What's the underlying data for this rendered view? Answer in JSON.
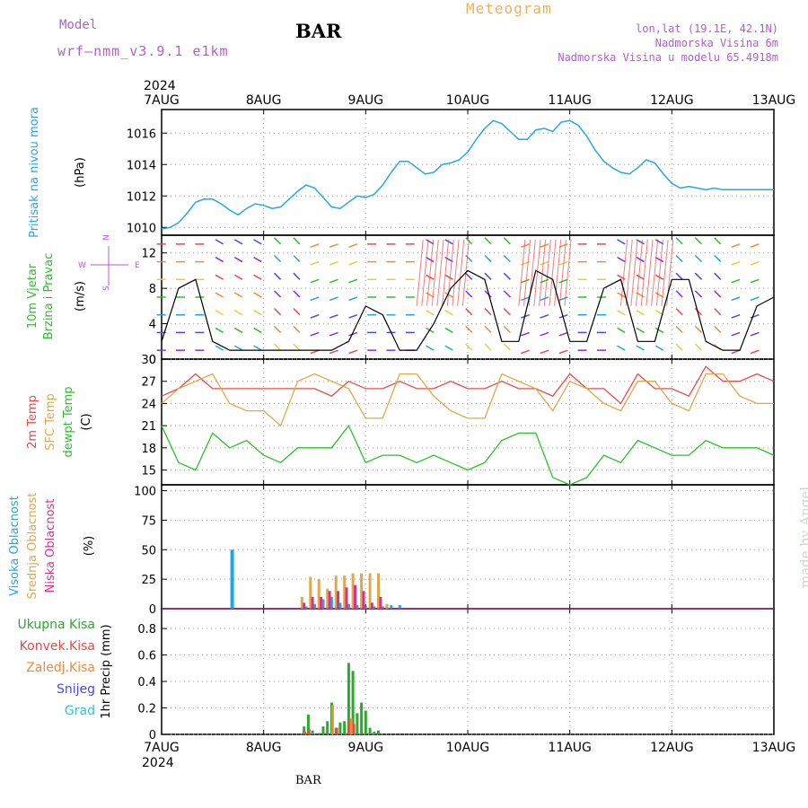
{
  "header": {
    "model_label": "Model",
    "model_name": "wrf—nmm_v3.9.1  e1km",
    "title": "BAR",
    "subtitle": "Meteogram",
    "location": "lon,lat (19.1E, 42.1N)",
    "elevation": "Nadmorska Visina 6m",
    "model_elevation": "Nadmorska Visina u modelu 65.4918m"
  },
  "footer": {
    "station": "BAR",
    "watermark": "made by Angel"
  },
  "colors": {
    "pressure": "#26a7e6",
    "wind_label": "#2ac12a",
    "wind_axis": "#b35cd6",
    "temp_2m": "#e84a4a",
    "temp_sfc": "#e0a84a",
    "dewpt": "#2ac12a",
    "cloud_high": "#1ea7e6",
    "cloud_mid": "#e0a84a",
    "cloud_low": "#d8338c",
    "rain_total": "#2ea82e",
    "rain_conv": "#e84a4a",
    "rain_frozen": "#f08a3a",
    "snow": "#4a4ae6",
    "hail": "#2ac8c8"
  },
  "chart_data": [
    {
      "type": "line",
      "panel": "pressure",
      "xaxis": {
        "top_year": "2024",
        "bottom_year": "2024",
        "ticks": [
          "7AUG",
          "8AUG",
          "9AUG",
          "10AUG",
          "11AUG",
          "12AUG",
          "13AUG"
        ],
        "range_hours": [
          0,
          144
        ]
      },
      "ylabel_primary": "Pritisak na nivou mora",
      "ylabel_unit": "(hPa)",
      "yticks": [
        1010,
        1012,
        1014,
        1016
      ],
      "ylim": [
        1009.5,
        1017.5
      ],
      "series": [
        {
          "name": "Pritisak na nivou mora",
          "x": [
            0,
            2,
            4,
            6,
            8,
            10,
            12,
            14,
            16,
            18,
            20,
            22,
            24,
            26,
            28,
            30,
            32,
            34,
            36,
            38,
            40,
            42,
            44,
            46,
            48,
            50,
            52,
            54,
            56,
            58,
            60,
            62,
            64,
            66,
            68,
            70,
            72,
            74,
            76,
            78,
            80,
            82,
            84,
            86,
            88,
            90,
            92,
            94,
            96,
            98,
            100,
            102,
            104,
            106,
            108,
            110,
            112,
            114,
            116,
            118,
            120,
            122,
            124,
            126,
            128,
            130,
            132,
            134,
            136,
            138,
            140,
            142,
            144
          ],
          "values": [
            1009.9,
            1010.0,
            1010.3,
            1010.9,
            1011.6,
            1011.8,
            1011.8,
            1011.5,
            1011.1,
            1010.8,
            1011.2,
            1011.5,
            1011.4,
            1011.2,
            1011.3,
            1011.8,
            1012.3,
            1012.7,
            1012.5,
            1011.9,
            1011.3,
            1011.2,
            1011.6,
            1012.0,
            1011.9,
            1012.1,
            1012.7,
            1013.5,
            1014.2,
            1014.2,
            1013.8,
            1013.4,
            1013.5,
            1014.0,
            1014.1,
            1014.3,
            1014.8,
            1015.6,
            1016.3,
            1016.8,
            1016.6,
            1016.1,
            1015.6,
            1015.6,
            1016.2,
            1016.3,
            1016.1,
            1016.7,
            1016.8,
            1016.5,
            1015.8,
            1014.9,
            1014.2,
            1013.8,
            1013.5,
            1013.4,
            1013.8,
            1014.3,
            1014.1,
            1013.4,
            1012.8,
            1012.5,
            1012.6,
            1012.5,
            1012.4,
            1012.5,
            1012.4,
            1012.4,
            1012.4,
            1012.4,
            1012.4,
            1012.4,
            1012.4
          ]
        }
      ]
    },
    {
      "type": "line",
      "panel": "wind",
      "ylabel_primary": "10m Vjetar",
      "ylabel_secondary": "Brzina i Pravac",
      "ylabel_unit": "(m/s)",
      "compass": {
        "n": "N",
        "e": "E",
        "w": "W",
        "s": "S"
      },
      "yticks": [
        0,
        4,
        8,
        12
      ],
      "ylim": [
        0,
        14
      ],
      "series": [
        {
          "name": "10m Vjetar",
          "x": [
            0,
            4,
            8,
            12,
            16,
            20,
            24,
            28,
            32,
            36,
            40,
            44,
            48,
            52,
            56,
            60,
            64,
            68,
            72,
            76,
            80,
            84,
            88,
            92,
            96,
            100,
            104,
            108,
            112,
            116,
            120,
            124,
            128,
            132,
            136,
            140,
            144
          ],
          "values": [
            2,
            8,
            9,
            2,
            1,
            1,
            1,
            1,
            1,
            1,
            1,
            2,
            6,
            5,
            1,
            1,
            4,
            8,
            10,
            9,
            2,
            2,
            10,
            9,
            2,
            2,
            8,
            9,
            2,
            2,
            9,
            9,
            2,
            1,
            1,
            6,
            7
          ]
        }
      ]
    },
    {
      "type": "line",
      "panel": "temperature",
      "ylabel_lines": [
        "2m Temp",
        "SFC Temp",
        "dewpt Temp"
      ],
      "ylabel_unit": "(C)",
      "yticks": [
        15,
        18,
        21,
        24,
        27,
        30
      ],
      "ylim": [
        13,
        30
      ],
      "series": [
        {
          "name": "2m Temp",
          "x": [
            0,
            4,
            8,
            12,
            16,
            20,
            24,
            28,
            32,
            36,
            40,
            44,
            48,
            52,
            56,
            60,
            64,
            68,
            72,
            76,
            80,
            84,
            88,
            92,
            96,
            100,
            104,
            108,
            112,
            116,
            120,
            124,
            128,
            132,
            136,
            140,
            144
          ],
          "values": [
            25,
            26,
            28,
            26,
            26,
            26,
            26,
            26,
            26,
            26,
            25,
            27,
            26,
            26,
            27,
            26,
            26,
            27,
            26,
            26,
            27,
            26,
            26,
            25,
            28,
            26,
            26,
            24,
            28,
            26,
            26,
            25,
            29,
            27,
            27,
            28,
            27
          ]
        },
        {
          "name": "SFC Temp",
          "x": [
            0,
            4,
            8,
            12,
            16,
            20,
            24,
            28,
            32,
            36,
            40,
            44,
            48,
            52,
            56,
            60,
            64,
            68,
            72,
            76,
            80,
            84,
            88,
            92,
            96,
            100,
            104,
            108,
            112,
            116,
            120,
            124,
            128,
            132,
            136,
            140,
            144
          ],
          "values": [
            24,
            26,
            27,
            28,
            24,
            23,
            23,
            21,
            27,
            28,
            27,
            26,
            22,
            22,
            28,
            28,
            25,
            23,
            22,
            22,
            28,
            27,
            26,
            23,
            27,
            26,
            24,
            23,
            27,
            27,
            24,
            23,
            28,
            28,
            25,
            24,
            24
          ]
        },
        {
          "name": "dewpt Temp",
          "x": [
            0,
            4,
            8,
            12,
            16,
            20,
            24,
            28,
            32,
            36,
            40,
            44,
            48,
            52,
            56,
            60,
            64,
            68,
            72,
            76,
            80,
            84,
            88,
            92,
            96,
            100,
            104,
            108,
            112,
            116,
            120,
            124,
            128,
            132,
            136,
            140,
            144
          ],
          "values": [
            21,
            16,
            15,
            20,
            18,
            19,
            17,
            16,
            18,
            18,
            18,
            21,
            16,
            17,
            17,
            16,
            17,
            16,
            15,
            16,
            19,
            20,
            20,
            14,
            13,
            14,
            17,
            16,
            19,
            18,
            17,
            17,
            19,
            18,
            18,
            18,
            17
          ]
        }
      ]
    },
    {
      "type": "bar",
      "panel": "clouds",
      "ylabel_lines": [
        "Visoka Oblacnost",
        "Srednja Oblacnost",
        "Niska Oblacnost"
      ],
      "ylabel_unit": "(%)",
      "yticks": [
        0,
        25,
        50,
        75,
        100
      ],
      "ylim": [
        0,
        105
      ],
      "series": [
        {
          "name": "Visoka Oblacnost",
          "x": [
            16.5,
            34,
            36,
            38,
            40,
            42,
            44,
            46,
            48,
            50,
            52,
            54,
            56
          ],
          "values": [
            50,
            2,
            4,
            8,
            10,
            5,
            4,
            3,
            2,
            2,
            2,
            3,
            3
          ]
        },
        {
          "name": "Srednja Oblacnost",
          "x": [
            33,
            35,
            37,
            39,
            41,
            43,
            45,
            47,
            49,
            51,
            53
          ],
          "values": [
            10,
            27,
            25,
            17,
            28,
            28,
            30,
            30,
            30,
            30,
            4
          ]
        },
        {
          "name": "Niska Oblacnost",
          "x": [
            33.5,
            35.5,
            37.5,
            39.5,
            41.5,
            43.5,
            45.5,
            47.5,
            49.5,
            51.5
          ],
          "values": [
            5,
            10,
            10,
            15,
            15,
            18,
            20,
            15,
            5,
            10
          ]
        }
      ]
    },
    {
      "type": "bar",
      "panel": "precip",
      "ylabel_unit": "1hr Precip (mm)",
      "legend": [
        "Ukupna Kisa",
        "Konvek.Kisa",
        "Zaledj.Kisa",
        "Snijeg",
        "Grad"
      ],
      "yticks": [
        0,
        0.2,
        0.4,
        0.6,
        0.8
      ],
      "ylim": [
        0,
        0.95
      ],
      "series": [
        {
          "name": "Ukupna Kisa",
          "x": [
            33.5,
            34.5,
            35.5,
            37,
            38,
            39,
            40,
            41,
            42,
            43,
            44,
            45,
            46,
            47,
            48,
            49,
            50,
            51
          ],
          "values": [
            0.06,
            0.15,
            0.03,
            0.01,
            0.06,
            0.1,
            0.24,
            0.05,
            0.09,
            0.1,
            0.54,
            0.48,
            0.16,
            0.24,
            0.18,
            0.05,
            0.02,
            0.03
          ]
        },
        {
          "name": "Konvek.Kisa",
          "x": [
            33.7,
            34.7,
            41.2,
            44.2,
            45.2
          ],
          "values": [
            0.02,
            0.04,
            0.05,
            0.1,
            0.08
          ]
        },
        {
          "name": "Zaledj.Kisa",
          "x": [
            40.2,
            44.6
          ],
          "values": [
            0.22,
            0.12
          ]
        }
      ]
    }
  ]
}
